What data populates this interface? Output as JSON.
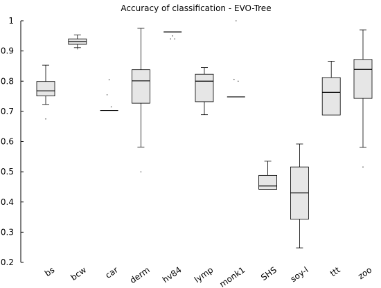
{
  "chart_data": {
    "type": "box",
    "title": "Accuracy of classification - EVO-Tree",
    "xlabel": "",
    "ylabel": "",
    "ylim": [
      0.2,
      1.0
    ],
    "yticks": [
      "0.2",
      "0.3",
      "0.4",
      "0.5",
      "0.6",
      "0.7",
      "0.8",
      "0.9",
      "1"
    ],
    "grid": false,
    "box_fill": "#e6e6e6",
    "categories": [
      "bs",
      "bcw",
      "car",
      "derm",
      "hv84",
      "lymp",
      "monk1",
      "SHS",
      "soy-l",
      "ttt",
      "zoo"
    ],
    "boxes": [
      {
        "label": "bs",
        "whisker_low": 0.723,
        "q1": 0.751,
        "median": 0.768,
        "q3": 0.799,
        "whisker_high": 0.853,
        "outliers": [
          0.675
        ]
      },
      {
        "label": "bcw",
        "whisker_low": 0.911,
        "q1": 0.922,
        "median": 0.931,
        "q3": 0.94,
        "whisker_high": 0.953,
        "outliers": [
          0.907
        ]
      },
      {
        "label": "car",
        "whisker_low": 0.703,
        "q1": 0.703,
        "median": 0.703,
        "q3": 0.703,
        "whisker_high": 0.703,
        "outliers": [
          0.805,
          0.755,
          0.715
        ]
      },
      {
        "label": "derm",
        "whisker_low": 0.582,
        "q1": 0.727,
        "median": 0.801,
        "q3": 0.838,
        "whisker_high": 0.975,
        "outliers": [
          0.5
        ]
      },
      {
        "label": "hv84",
        "whisker_low": 0.963,
        "q1": 0.963,
        "median": 0.963,
        "q3": 0.963,
        "whisker_high": 0.963,
        "outliers": [
          0.95,
          0.94,
          0.94
        ]
      },
      {
        "label": "lymp",
        "whisker_low": 0.689,
        "q1": 0.732,
        "median": 0.8,
        "q3": 0.823,
        "whisker_high": 0.845,
        "outliers": []
      },
      {
        "label": "monk1",
        "whisker_low": 0.748,
        "q1": 0.748,
        "median": 0.748,
        "q3": 0.748,
        "whisker_high": 0.748,
        "outliers": [
          1.0,
          0.806,
          0.8
        ]
      },
      {
        "label": "SHS",
        "whisker_low": 0.442,
        "q1": 0.442,
        "median": 0.453,
        "q3": 0.488,
        "whisker_high": 0.535,
        "outliers": []
      },
      {
        "label": "soy-l",
        "whisker_low": 0.248,
        "q1": 0.343,
        "median": 0.43,
        "q3": 0.516,
        "whisker_high": 0.592,
        "outliers": []
      },
      {
        "label": "ttt",
        "whisker_low": 0.688,
        "q1": 0.688,
        "median": 0.763,
        "q3": 0.812,
        "whisker_high": 0.866,
        "outliers": []
      },
      {
        "label": "zoo",
        "whisker_low": 0.581,
        "q1": 0.743,
        "median": 0.839,
        "q3": 0.872,
        "whisker_high": 0.97,
        "outliers": [
          0.516
        ]
      }
    ]
  }
}
